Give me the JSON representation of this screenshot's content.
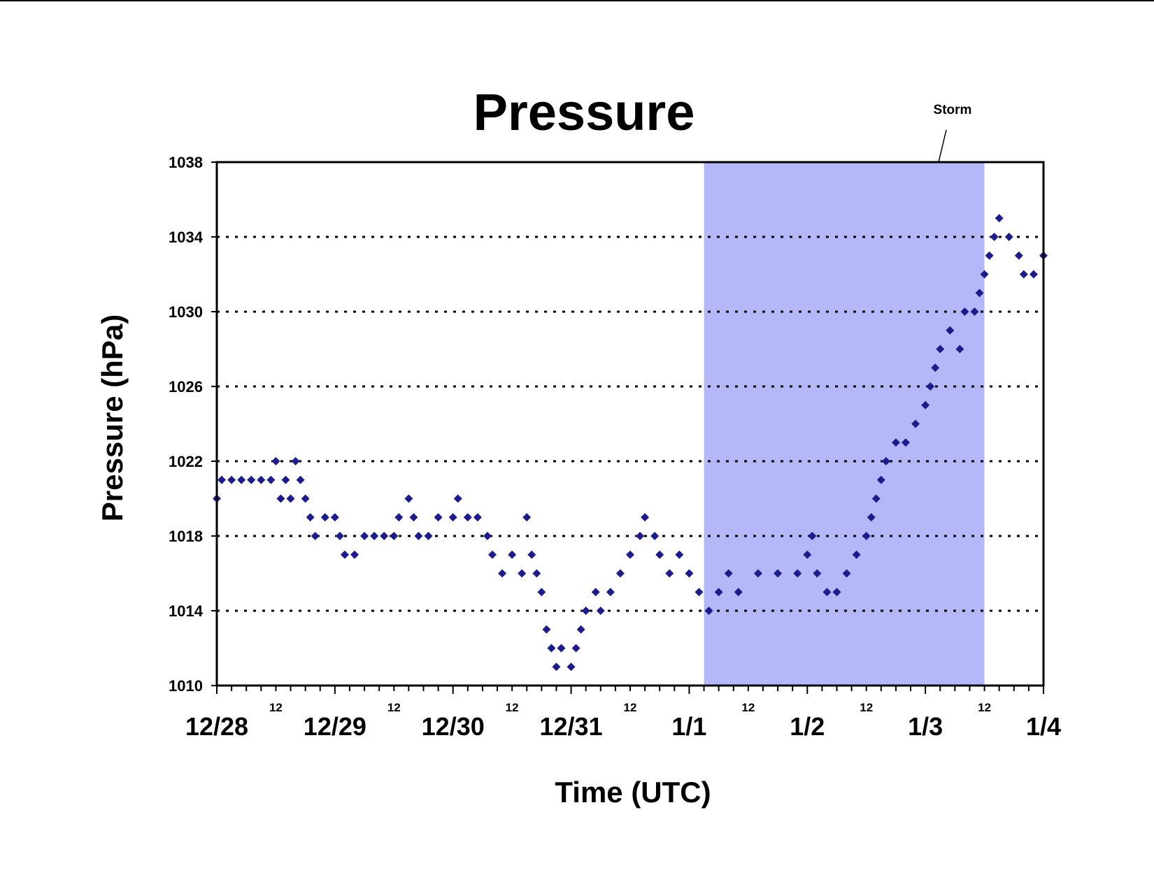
{
  "chart_data": {
    "type": "scatter",
    "title": "Pressure",
    "xlabel": "Time (UTC)",
    "ylabel": "Pressure (hPa)",
    "ylim": [
      1010,
      1038
    ],
    "yticks": [
      "1010",
      "1014",
      "1018",
      "1022",
      "1026",
      "1030",
      "1034",
      "1038"
    ],
    "day_labels": [
      "12/28",
      "12/29",
      "12/30",
      "12/31",
      "1/1",
      "1/2",
      "1/3",
      "1/4"
    ],
    "hour_label": "12",
    "xlim": [
      "12/28 00:00",
      "1/4 00:00"
    ],
    "gridlines": "horizontal-dotted",
    "marker_color": "#1c1c8c",
    "shade_color": "#b4b8f8",
    "annotation": {
      "text": "Storm",
      "start": "1/1 03:00",
      "end": "1/3 12:00"
    },
    "series": [
      {
        "points": [
          [
            "12/28 00:00",
            1020
          ],
          [
            "12/28 01:00",
            1021
          ],
          [
            "12/28 03:00",
            1021
          ],
          [
            "12/28 05:00",
            1021
          ],
          [
            "12/28 07:00",
            1021
          ],
          [
            "12/28 09:00",
            1021
          ],
          [
            "12/28 11:00",
            1021
          ],
          [
            "12/28 12:00",
            1022
          ],
          [
            "12/28 13:00",
            1020
          ],
          [
            "12/28 14:00",
            1021
          ],
          [
            "12/28 15:00",
            1020
          ],
          [
            "12/28 16:00",
            1022
          ],
          [
            "12/28 17:00",
            1021
          ],
          [
            "12/28 18:00",
            1020
          ],
          [
            "12/28 19:00",
            1019
          ],
          [
            "12/28 20:00",
            1018
          ],
          [
            "12/28 22:00",
            1019
          ],
          [
            "12/29 00:00",
            1019
          ],
          [
            "12/29 01:00",
            1018
          ],
          [
            "12/29 02:00",
            1017
          ],
          [
            "12/29 04:00",
            1017
          ],
          [
            "12/29 06:00",
            1018
          ],
          [
            "12/29 08:00",
            1018
          ],
          [
            "12/29 10:00",
            1018
          ],
          [
            "12/29 12:00",
            1018
          ],
          [
            "12/29 13:00",
            1019
          ],
          [
            "12/29 15:00",
            1020
          ],
          [
            "12/29 16:00",
            1019
          ],
          [
            "12/29 17:00",
            1018
          ],
          [
            "12/29 19:00",
            1018
          ],
          [
            "12/29 21:00",
            1019
          ],
          [
            "12/30 00:00",
            1019
          ],
          [
            "12/30 01:00",
            1020
          ],
          [
            "12/30 03:00",
            1019
          ],
          [
            "12/30 05:00",
            1019
          ],
          [
            "12/30 07:00",
            1018
          ],
          [
            "12/30 08:00",
            1017
          ],
          [
            "12/30 10:00",
            1016
          ],
          [
            "12/30 12:00",
            1017
          ],
          [
            "12/30 14:00",
            1016
          ],
          [
            "12/30 15:00",
            1019
          ],
          [
            "12/30 16:00",
            1017
          ],
          [
            "12/30 17:00",
            1016
          ],
          [
            "12/30 18:00",
            1015
          ],
          [
            "12/30 19:00",
            1013
          ],
          [
            "12/30 20:00",
            1012
          ],
          [
            "12/30 21:00",
            1011
          ],
          [
            "12/30 22:00",
            1012
          ],
          [
            "12/31 00:00",
            1011
          ],
          [
            "12/31 01:00",
            1012
          ],
          [
            "12/31 02:00",
            1013
          ],
          [
            "12/31 03:00",
            1014
          ],
          [
            "12/31 05:00",
            1015
          ],
          [
            "12/31 06:00",
            1014
          ],
          [
            "12/31 08:00",
            1015
          ],
          [
            "12/31 10:00",
            1016
          ],
          [
            "12/31 12:00",
            1017
          ],
          [
            "12/31 14:00",
            1018
          ],
          [
            "12/31 15:00",
            1019
          ],
          [
            "12/31 17:00",
            1018
          ],
          [
            "12/31 18:00",
            1017
          ],
          [
            "12/31 20:00",
            1016
          ],
          [
            "12/31 22:00",
            1017
          ],
          [
            "1/1 00:00",
            1016
          ],
          [
            "1/1 02:00",
            1015
          ],
          [
            "1/1 04:00",
            1014
          ],
          [
            "1/1 06:00",
            1015
          ],
          [
            "1/1 08:00",
            1016
          ],
          [
            "1/1 10:00",
            1015
          ],
          [
            "1/1 14:00",
            1016
          ],
          [
            "1/1 18:00",
            1016
          ],
          [
            "1/1 22:00",
            1016
          ],
          [
            "1/2 00:00",
            1017
          ],
          [
            "1/2 01:00",
            1018
          ],
          [
            "1/2 02:00",
            1016
          ],
          [
            "1/2 04:00",
            1015
          ],
          [
            "1/2 06:00",
            1015
          ],
          [
            "1/2 08:00",
            1016
          ],
          [
            "1/2 10:00",
            1017
          ],
          [
            "1/2 12:00",
            1018
          ],
          [
            "1/2 13:00",
            1019
          ],
          [
            "1/2 14:00",
            1020
          ],
          [
            "1/2 15:00",
            1021
          ],
          [
            "1/2 16:00",
            1022
          ],
          [
            "1/2 18:00",
            1023
          ],
          [
            "1/2 20:00",
            1023
          ],
          [
            "1/2 22:00",
            1024
          ],
          [
            "1/3 00:00",
            1025
          ],
          [
            "1/3 01:00",
            1026
          ],
          [
            "1/3 02:00",
            1027
          ],
          [
            "1/3 03:00",
            1028
          ],
          [
            "1/3 05:00",
            1029
          ],
          [
            "1/3 07:00",
            1028
          ],
          [
            "1/3 08:00",
            1030
          ],
          [
            "1/3 10:00",
            1030
          ],
          [
            "1/3 11:00",
            1031
          ],
          [
            "1/3 12:00",
            1032
          ],
          [
            "1/3 13:00",
            1033
          ],
          [
            "1/3 14:00",
            1034
          ],
          [
            "1/3 15:00",
            1035
          ],
          [
            "1/3 17:00",
            1034
          ],
          [
            "1/3 19:00",
            1033
          ],
          [
            "1/3 20:00",
            1032
          ],
          [
            "1/3 22:00",
            1032
          ],
          [
            "1/4 00:00",
            1033
          ]
        ]
      }
    ]
  }
}
